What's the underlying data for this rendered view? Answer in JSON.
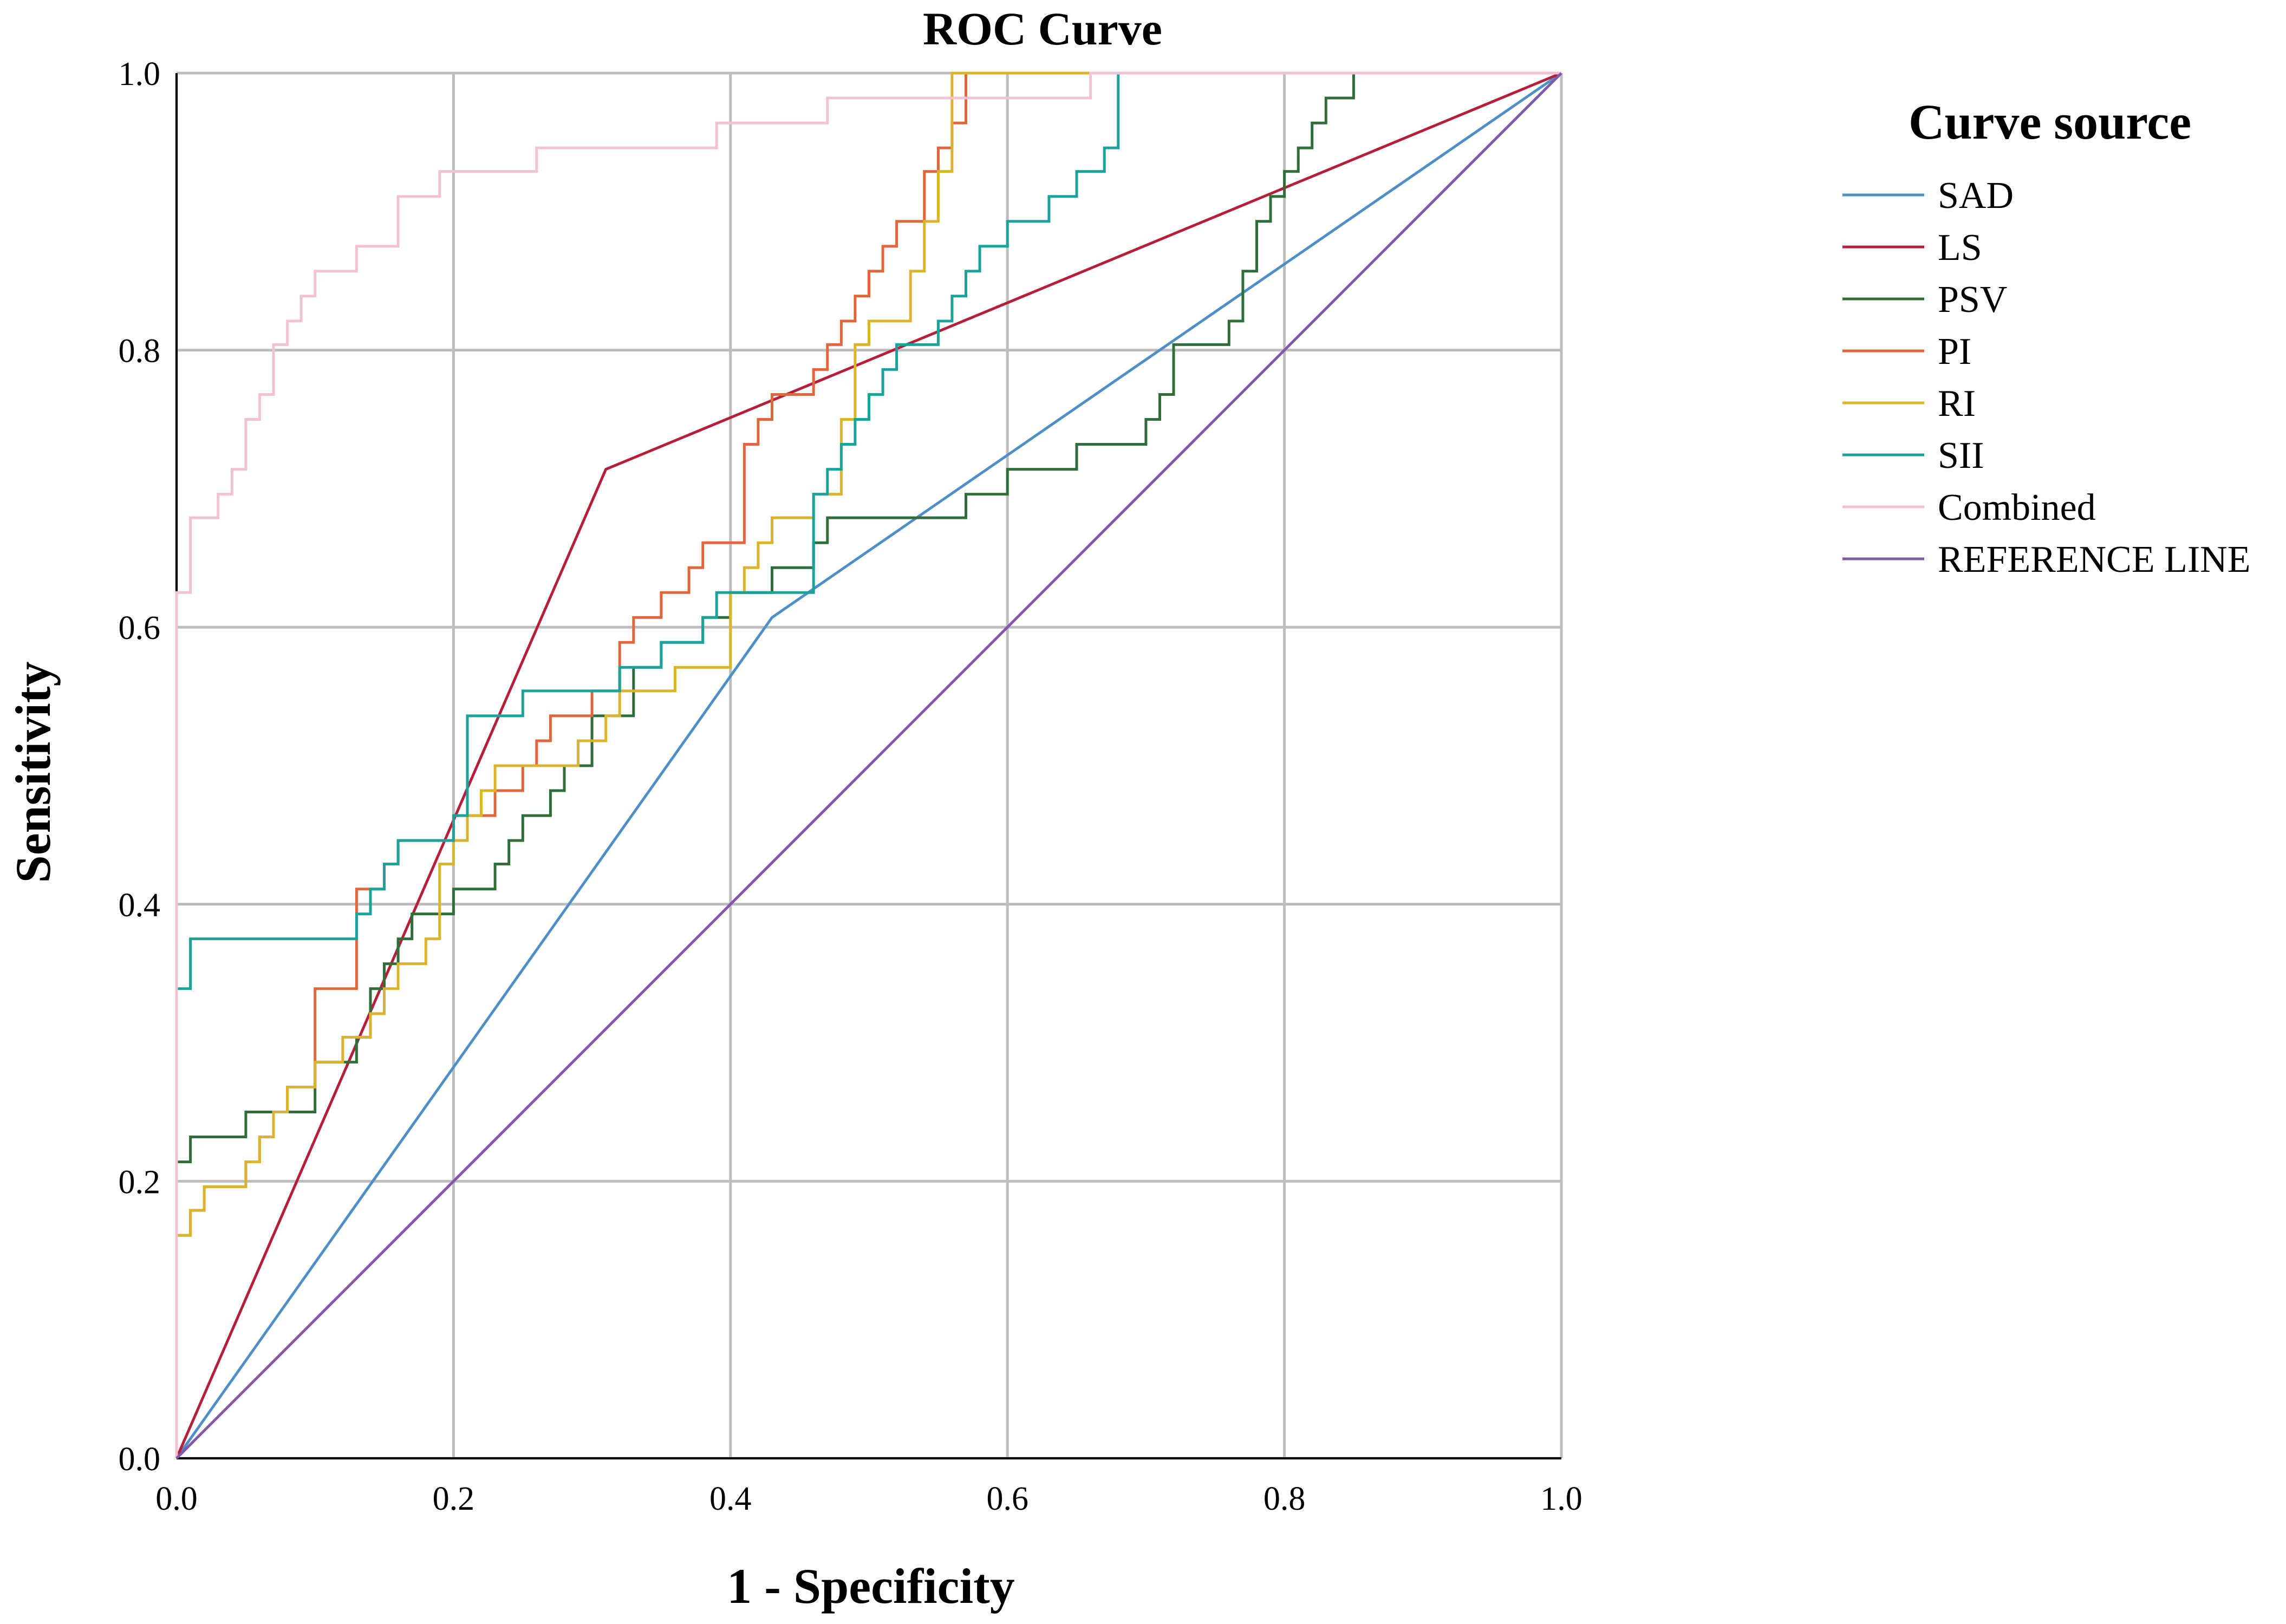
{
  "chart_data": {
    "type": "line",
    "title": "ROC Curve",
    "xlabel": "1 - Specificity",
    "ylabel": "Sensitivity",
    "xlim": [
      0,
      1
    ],
    "ylim": [
      0,
      1
    ],
    "x_ticks": [
      "0.0",
      "0.2",
      "0.4",
      "0.6",
      "0.8",
      "1.0"
    ],
    "y_ticks": [
      "0.0",
      "0.2",
      "0.4",
      "0.6",
      "0.8",
      "1.0"
    ],
    "grid": true,
    "legend_title": "Curve source",
    "legend_position": "right",
    "series": [
      {
        "name": "SAD",
        "color": "#4f8fc6",
        "step": false,
        "x": [
          0,
          0.43,
          1
        ],
        "y": [
          0,
          0.607,
          1
        ]
      },
      {
        "name": "LS",
        "color": "#b51f3c",
        "step": false,
        "x": [
          0,
          0.31,
          1
        ],
        "y": [
          0,
          0.714,
          1
        ]
      },
      {
        "name": "PSV",
        "color": "#2f6e3a",
        "step": true,
        "x": [
          0,
          0,
          0.01,
          0.05,
          0.1,
          0.13,
          0.14,
          0.15,
          0.16,
          0.17,
          0.2,
          0.23,
          0.24,
          0.25,
          0.27,
          0.28,
          0.3,
          0.33,
          0.35,
          0.38,
          0.4,
          0.43,
          0.46,
          0.47,
          0.5,
          0.55,
          0.57,
          0.6,
          0.65,
          0.7,
          0.71,
          0.72,
          0.76,
          0.77,
          0.78,
          0.79,
          0.8,
          0.81,
          0.82,
          0.83,
          0.85,
          0.86,
          1
        ],
        "y": [
          0,
          0.214,
          0.232,
          0.25,
          0.286,
          0.304,
          0.339,
          0.357,
          0.375,
          0.393,
          0.411,
          0.429,
          0.446,
          0.464,
          0.482,
          0.5,
          0.536,
          0.571,
          0.589,
          0.607,
          0.625,
          0.643,
          0.661,
          0.679,
          0.679,
          0.679,
          0.696,
          0.714,
          0.732,
          0.75,
          0.768,
          0.804,
          0.821,
          0.857,
          0.893,
          0.911,
          0.929,
          0.946,
          0.964,
          0.982,
          1.0,
          1.0,
          1.0
        ]
      },
      {
        "name": "PI",
        "color": "#e2663c",
        "step": true,
        "x": [
          0,
          0,
          0.01,
          0.02,
          0.05,
          0.06,
          0.07,
          0.08,
          0.1,
          0.13,
          0.15,
          0.16,
          0.2,
          0.23,
          0.25,
          0.26,
          0.27,
          0.3,
          0.32,
          0.33,
          0.35,
          0.37,
          0.38,
          0.39,
          0.41,
          0.42,
          0.43,
          0.44,
          0.46,
          0.47,
          0.48,
          0.49,
          0.5,
          0.51,
          0.52,
          0.54,
          0.55,
          0.56,
          0.57,
          1
        ],
        "y": [
          0,
          0.161,
          0.179,
          0.196,
          0.214,
          0.232,
          0.25,
          0.268,
          0.339,
          0.411,
          0.429,
          0.446,
          0.464,
          0.482,
          0.5,
          0.518,
          0.536,
          0.554,
          0.589,
          0.607,
          0.625,
          0.643,
          0.661,
          0.661,
          0.732,
          0.75,
          0.768,
          0.768,
          0.786,
          0.804,
          0.821,
          0.839,
          0.857,
          0.875,
          0.893,
          0.929,
          0.946,
          0.964,
          1.0,
          1.0
        ]
      },
      {
        "name": "RI",
        "color": "#dbb42c",
        "step": true,
        "x": [
          0,
          0,
          0.01,
          0.02,
          0.05,
          0.06,
          0.07,
          0.08,
          0.1,
          0.12,
          0.14,
          0.15,
          0.16,
          0.18,
          0.19,
          0.2,
          0.21,
          0.22,
          0.23,
          0.25,
          0.27,
          0.29,
          0.31,
          0.32,
          0.33,
          0.35,
          0.36,
          0.38,
          0.4,
          0.41,
          0.42,
          0.43,
          0.45,
          0.46,
          0.47,
          0.48,
          0.49,
          0.5,
          0.51,
          0.52,
          0.53,
          0.54,
          0.55,
          0.56,
          0.66
        ],
        "y": [
          0,
          0.161,
          0.179,
          0.196,
          0.214,
          0.232,
          0.25,
          0.268,
          0.286,
          0.304,
          0.321,
          0.339,
          0.357,
          0.375,
          0.429,
          0.446,
          0.464,
          0.482,
          0.5,
          0.5,
          0.5,
          0.518,
          0.536,
          0.554,
          0.554,
          0.554,
          0.571,
          0.571,
          0.625,
          0.643,
          0.661,
          0.679,
          0.679,
          0.696,
          0.696,
          0.75,
          0.804,
          0.821,
          0.821,
          0.821,
          0.857,
          0.893,
          0.929,
          1.0,
          1.0
        ]
      },
      {
        "name": "SII",
        "color": "#1ba39a",
        "step": true,
        "x": [
          0,
          0,
          0.01,
          0.13,
          0.14,
          0.15,
          0.16,
          0.17,
          0.2,
          0.21,
          0.22,
          0.23,
          0.25,
          0.27,
          0.3,
          0.32,
          0.33,
          0.35,
          0.37,
          0.38,
          0.39,
          0.4,
          0.42,
          0.44,
          0.46,
          0.47,
          0.48,
          0.49,
          0.5,
          0.51,
          0.52,
          0.54,
          0.55,
          0.56,
          0.57,
          0.58,
          0.6,
          0.63,
          0.65,
          0.67,
          0.68,
          0.69
        ],
        "y": [
          0,
          0.339,
          0.375,
          0.393,
          0.411,
          0.429,
          0.446,
          0.446,
          0.464,
          0.536,
          0.536,
          0.536,
          0.554,
          0.554,
          0.554,
          0.571,
          0.571,
          0.589,
          0.589,
          0.607,
          0.625,
          0.625,
          0.625,
          0.625,
          0.696,
          0.714,
          0.732,
          0.75,
          0.768,
          0.786,
          0.804,
          0.804,
          0.821,
          0.839,
          0.857,
          0.875,
          0.893,
          0.911,
          0.929,
          0.946,
          1.0,
          1.0
        ]
      },
      {
        "name": "Combined",
        "color": "#f1c2d2",
        "step": true,
        "x": [
          0,
          0,
          0,
          0.01,
          0.02,
          0.03,
          0.04,
          0.05,
          0.06,
          0.07,
          0.08,
          0.09,
          0.1,
          0.13,
          0.16,
          0.19,
          0.2,
          0.26,
          0.39,
          0.47,
          0.66,
          1
        ],
        "y": [
          0,
          0.339,
          0.625,
          0.679,
          0.679,
          0.696,
          0.714,
          0.75,
          0.768,
          0.804,
          0.821,
          0.839,
          0.857,
          0.875,
          0.911,
          0.929,
          0.929,
          0.946,
          0.964,
          0.982,
          1.0,
          1.0
        ]
      },
      {
        "name": "REFERENCE LINE",
        "color": "#7f5aa6",
        "step": false,
        "x": [
          0,
          1
        ],
        "y": [
          0,
          1
        ]
      }
    ]
  }
}
